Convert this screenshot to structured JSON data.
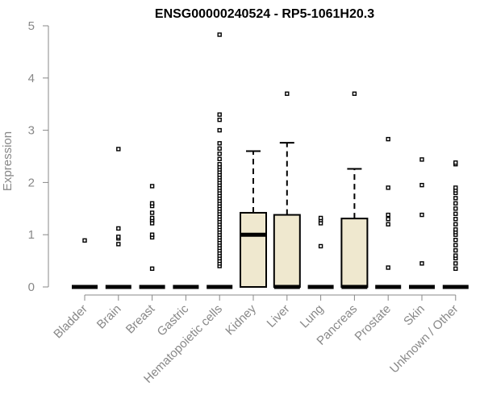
{
  "chart_data": {
    "type": "boxplot",
    "title": "ENSG00000240524 - RP5-1061H20.3",
    "xlabel": "",
    "ylabel": "Expression",
    "ylim": [
      0,
      5
    ],
    "yticks": [
      0,
      1,
      2,
      3,
      4,
      5
    ],
    "categories": [
      "Bladder",
      "Brain",
      "Breast",
      "Gastric",
      "Hematopoietic cells",
      "Kidney",
      "Liver",
      "Lung",
      "Pancreas",
      "Prostate",
      "Skin",
      "Unknown / Other"
    ],
    "boxes": [
      {
        "name": "Bladder",
        "q1": 0,
        "median": 0,
        "q3": 0,
        "whisker_low": 0,
        "whisker_high": 0,
        "outliers": [
          0.89
        ]
      },
      {
        "name": "Brain",
        "q1": 0,
        "median": 0,
        "q3": 0,
        "whisker_low": 0,
        "whisker_high": 0,
        "outliers": [
          0.82,
          0.93,
          0.96,
          1.12,
          2.64
        ]
      },
      {
        "name": "Breast",
        "q1": 0,
        "median": 0,
        "q3": 0,
        "whisker_low": 0,
        "whisker_high": 0,
        "outliers": [
          0.35,
          0.95,
          1.0,
          1.22,
          1.28,
          1.32,
          1.42,
          1.55,
          1.6,
          1.93
        ]
      },
      {
        "name": "Gastric",
        "q1": 0,
        "median": 0,
        "q3": 0,
        "whisker_low": 0,
        "whisker_high": 0,
        "outliers": []
      },
      {
        "name": "Hematopoietic cells",
        "q1": 0,
        "median": 0,
        "q3": 0,
        "whisker_low": 0,
        "whisker_high": 0,
        "outliers": [
          0.4,
          0.45,
          0.5,
          0.55,
          0.6,
          0.65,
          0.7,
          0.75,
          0.8,
          0.85,
          0.9,
          0.95,
          1.0,
          1.05,
          1.1,
          1.15,
          1.2,
          1.25,
          1.3,
          1.35,
          1.4,
          1.45,
          1.5,
          1.55,
          1.6,
          1.65,
          1.7,
          1.75,
          1.8,
          1.85,
          1.9,
          1.95,
          2.0,
          2.05,
          2.1,
          2.15,
          2.2,
          2.25,
          2.3,
          2.35,
          2.45,
          2.55,
          2.65,
          2.75,
          3.0,
          3.2,
          3.3,
          4.83
        ]
      },
      {
        "name": "Kidney",
        "q1": 0,
        "median": 1.0,
        "q3": 1.42,
        "whisker_low": 0,
        "whisker_high": 2.6,
        "outliers": []
      },
      {
        "name": "Liver",
        "q1": 0,
        "median": 0,
        "q3": 1.38,
        "whisker_low": 0,
        "whisker_high": 2.76,
        "outliers": [
          3.7
        ]
      },
      {
        "name": "Lung",
        "q1": 0,
        "median": 0,
        "q3": 0,
        "whisker_low": 0,
        "whisker_high": 0,
        "outliers": [
          0.78,
          1.22,
          1.28,
          1.32
        ]
      },
      {
        "name": "Pancreas",
        "q1": 0,
        "median": 0,
        "q3": 1.31,
        "whisker_low": 0,
        "whisker_high": 2.26,
        "outliers": [
          3.7
        ]
      },
      {
        "name": "Prostate",
        "q1": 0,
        "median": 0,
        "q3": 0,
        "whisker_low": 0,
        "whisker_high": 0,
        "outliers": [
          0.37,
          1.2,
          1.3,
          1.38,
          1.9,
          2.83
        ]
      },
      {
        "name": "Skin",
        "q1": 0,
        "median": 0,
        "q3": 0,
        "whisker_low": 0,
        "whisker_high": 0,
        "outliers": [
          0.45,
          1.38,
          1.95,
          2.44
        ]
      },
      {
        "name": "Unknown / Other",
        "q1": 0,
        "median": 0,
        "q3": 0,
        "whisker_low": 0,
        "whisker_high": 0,
        "outliers": [
          0.35,
          0.45,
          0.55,
          0.6,
          0.7,
          0.8,
          0.9,
          1.0,
          1.05,
          1.1,
          1.2,
          1.3,
          1.4,
          1.5,
          1.6,
          1.7,
          1.8,
          1.85,
          1.9,
          2.35,
          2.38
        ]
      }
    ],
    "colors": {
      "box_fill": "#efe8cf",
      "box_stroke": "#000000",
      "axis": "#888888",
      "text_muted": "#888888",
      "title": "#000000"
    }
  }
}
